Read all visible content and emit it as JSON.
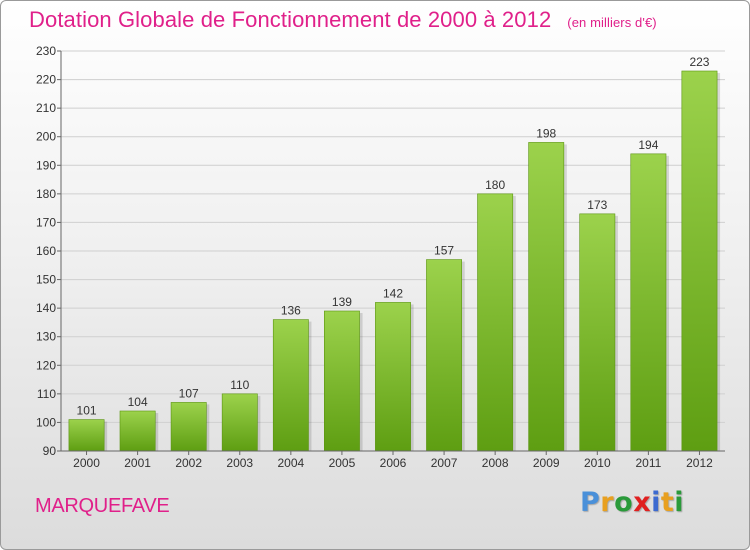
{
  "header": {
    "title": "Dotation Globale de Fonctionnement de 2000 à 2012",
    "unit": "(en milliers d'€)"
  },
  "footer": {
    "commune": "MARQUEFAVE",
    "logo": {
      "letters": [
        "P",
        "r",
        "o",
        "x",
        "i",
        "t",
        "i"
      ],
      "colors": [
        "#4a90d9",
        "#e8a020",
        "#2a9a3a",
        "#e02020",
        "#3c6ad0",
        "#e8a020",
        "#2a9a3a"
      ]
    }
  },
  "chart_data": {
    "type": "bar",
    "categories": [
      "2000",
      "2001",
      "2002",
      "2003",
      "2004",
      "2005",
      "2006",
      "2007",
      "2008",
      "2009",
      "2010",
      "2011",
      "2012"
    ],
    "values": [
      101,
      104,
      107,
      110,
      136,
      139,
      142,
      157,
      180,
      198,
      173,
      194,
      223
    ],
    "ylim": [
      90,
      230
    ],
    "yticks": [
      90,
      100,
      110,
      120,
      130,
      140,
      150,
      160,
      170,
      180,
      190,
      200,
      210,
      220,
      230
    ],
    "grid": true,
    "bar_colors": {
      "top": "#9cd24c",
      "bottom": "#5e9e12"
    }
  }
}
